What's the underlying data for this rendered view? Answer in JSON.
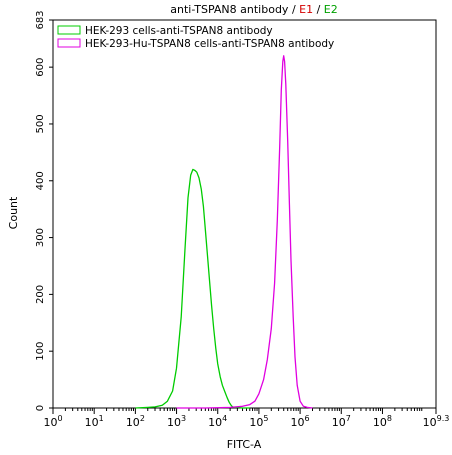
{
  "chart_data": {
    "type": "line",
    "title_parts": [
      {
        "text": "anti-TSPAN8 antibody / ",
        "color": "#000000"
      },
      {
        "text": "E1",
        "color": "#d40000"
      },
      {
        "text": " / ",
        "color": "#000000"
      },
      {
        "text": "E2",
        "color": "#00a000"
      }
    ],
    "xlabel": "FITC-A",
    "ylabel": "Count",
    "x_scale": "log",
    "xlim": [
      1,
      1995262315
    ],
    "ylim": [
      0,
      683
    ],
    "x_ticks": [
      {
        "value": 1,
        "base": "10",
        "exp": "0"
      },
      {
        "value": 10,
        "base": "10",
        "exp": "1"
      },
      {
        "value": 100,
        "base": "10",
        "exp": "2"
      },
      {
        "value": 1000,
        "base": "10",
        "exp": "3"
      },
      {
        "value": 10000,
        "base": "10",
        "exp": "4"
      },
      {
        "value": 100000,
        "base": "10",
        "exp": "5"
      },
      {
        "value": 1000000,
        "base": "10",
        "exp": "6"
      },
      {
        "value": 10000000,
        "base": "10",
        "exp": "7"
      },
      {
        "value": 100000000,
        "base": "10",
        "exp": "8"
      },
      {
        "value": 1995262315,
        "base": "10",
        "exp": "9.3"
      }
    ],
    "y_ticks": [
      0,
      100,
      200,
      300,
      400,
      500,
      600,
      683
    ],
    "legend_position": "top-left",
    "series": [
      {
        "name": "HEK-293 cells-anti-TSPAN8 antibody",
        "color": "#00cc00",
        "x": [
          100,
          200,
          300,
          450,
          600,
          800,
          1000,
          1300,
          1600,
          1900,
          2200,
          2500,
          2800,
          3100,
          3500,
          4000,
          4500,
          5000,
          5600,
          6300,
          7100,
          8000,
          9000,
          10000,
          11500,
          13000,
          15000,
          17000,
          19000,
          21000,
          23000,
          26000,
          30000,
          40000,
          60000
        ],
        "y": [
          0,
          1,
          2,
          5,
          12,
          30,
          70,
          160,
          280,
          370,
          410,
          420,
          418,
          415,
          405,
          385,
          355,
          315,
          270,
          225,
          180,
          140,
          105,
          78,
          55,
          40,
          28,
          18,
          10,
          5,
          2,
          1,
          1,
          0,
          0
        ]
      },
      {
        "name": "HEK-293-Hu-TSPAN8 cells-anti-TSPAN8 antibody",
        "color": "#e000e0",
        "x": [
          1000,
          5000,
          20000,
          40000,
          60000,
          80000,
          100000,
          130000,
          160000,
          200000,
          240000,
          280000,
          320000,
          350000,
          380000,
          400000,
          420000,
          450000,
          500000,
          550000,
          600000,
          680000,
          750000,
          850000,
          1000000,
          1200000,
          1500000,
          2000000
        ],
        "y": [
          0,
          0,
          1,
          3,
          6,
          12,
          25,
          50,
          85,
          140,
          220,
          330,
          460,
          560,
          610,
          620,
          610,
          570,
          470,
          360,
          260,
          160,
          90,
          40,
          12,
          3,
          1,
          0
        ]
      }
    ]
  }
}
